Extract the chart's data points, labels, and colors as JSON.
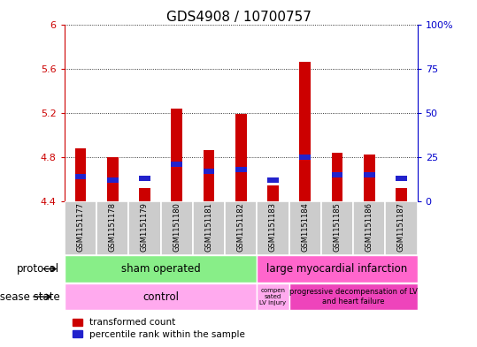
{
  "title": "GDS4908 / 10700757",
  "samples": [
    "GSM1151177",
    "GSM1151178",
    "GSM1151179",
    "GSM1151180",
    "GSM1151181",
    "GSM1151182",
    "GSM1151183",
    "GSM1151184",
    "GSM1151185",
    "GSM1151186",
    "GSM1151187"
  ],
  "transformed_count": [
    4.88,
    4.8,
    4.52,
    5.24,
    4.86,
    5.19,
    4.54,
    5.66,
    4.84,
    4.82,
    4.52
  ],
  "percentile_rank": [
    14,
    12,
    13,
    21,
    17,
    18,
    12,
    25,
    15,
    15,
    13
  ],
  "ylim_left": [
    4.4,
    6.0
  ],
  "ylim_right": [
    0,
    100
  ],
  "yticks_left": [
    4.4,
    4.8,
    5.2,
    5.6,
    6.0
  ],
  "ytick_labels_left": [
    "4.4",
    "4.8",
    "5.2",
    "5.6",
    "6"
  ],
  "yticks_right": [
    0,
    25,
    50,
    75,
    100
  ],
  "ytick_labels_right": [
    "0",
    "25",
    "50",
    "75",
    "100%"
  ],
  "bar_color_red": "#cc0000",
  "bar_color_blue": "#2222cc",
  "bar_width": 0.35,
  "base_value": 4.4,
  "sham_color": "#88ee88",
  "lmi_color": "#ff66cc",
  "disease_pink": "#ffaaee",
  "disease_magenta": "#ee44bb",
  "background_color": "#cccccc",
  "plot_bg": "#ffffff",
  "left_axis_color": "#cc0000",
  "right_axis_color": "#0000cc",
  "legend_red": "transformed count",
  "legend_blue": "percentile rank within the sample"
}
